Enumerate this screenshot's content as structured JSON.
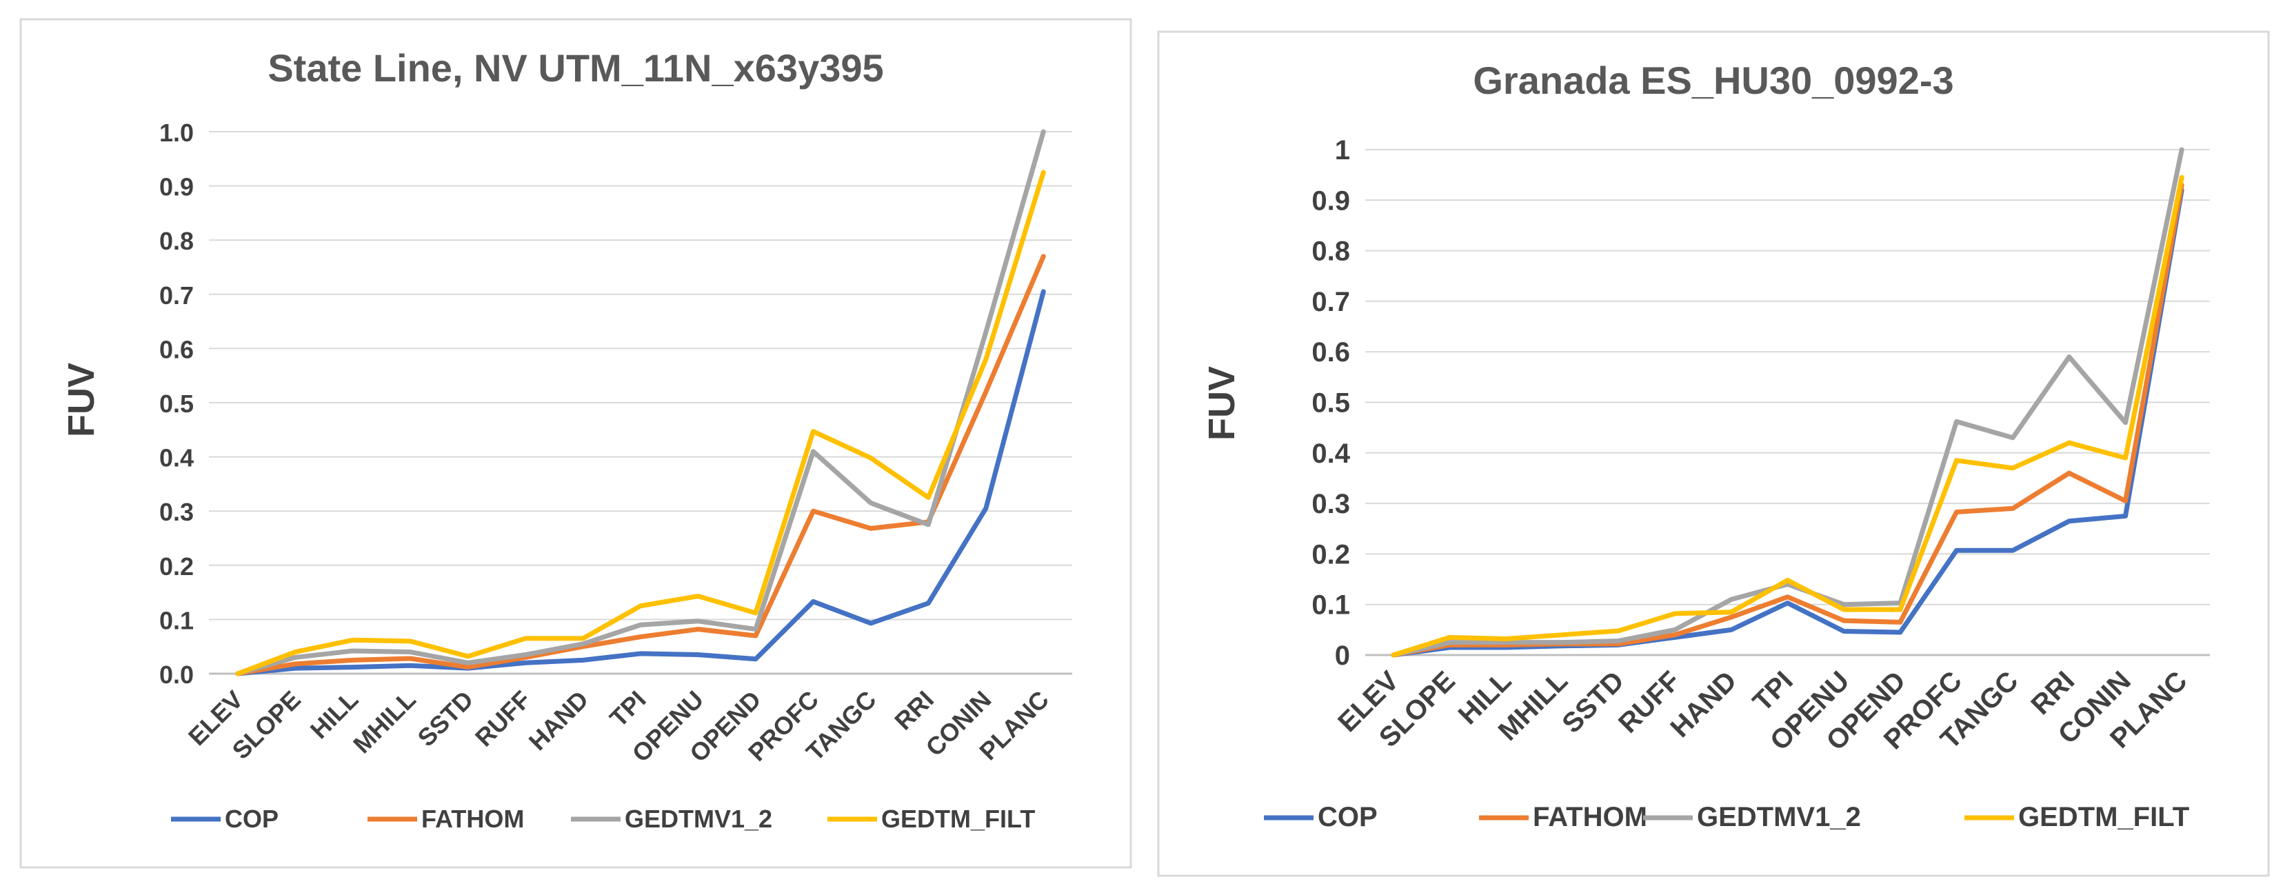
{
  "chart_data": [
    {
      "type": "line",
      "title": "State Line, NV  UTM_11N_x63y395",
      "xlabel": "",
      "ylabel": "FUV",
      "ylim": [
        0,
        1.0
      ],
      "yticks": [
        "0.0",
        "0.1",
        "0.2",
        "0.3",
        "0.4",
        "0.5",
        "0.6",
        "0.7",
        "0.8",
        "0.9",
        "1.0"
      ],
      "grid": true,
      "legend": "bottom",
      "categories": [
        "ELEV",
        "SLOPE",
        "HILL",
        "MHILL",
        "SSTD",
        "RUFF",
        "HAND",
        "TPI",
        "OPENU",
        "OPEND",
        "PROFC",
        "TANGC",
        "RRI",
        "CONIN",
        "PLANC"
      ],
      "series": [
        {
          "name": "COP",
          "color": "#4472c4",
          "values": [
            0,
            0.01,
            0.012,
            0.015,
            0.01,
            0.02,
            0.025,
            0.037,
            0.035,
            0.027,
            0.133,
            0.093,
            0.13,
            0.305,
            0.705
          ]
        },
        {
          "name": "FATHOM",
          "color": "#ed7d31",
          "values": [
            0,
            0.018,
            0.025,
            0.028,
            0.012,
            0.03,
            0.05,
            0.068,
            0.082,
            0.07,
            0.3,
            0.268,
            0.28,
            0.52,
            0.77
          ]
        },
        {
          "name": "GEDTMV1_2",
          "color": "#a5a5a5",
          "values": [
            0,
            0.03,
            0.042,
            0.04,
            0.02,
            0.035,
            0.055,
            0.09,
            0.097,
            0.082,
            0.41,
            0.315,
            0.275,
            0.63,
            1.0
          ]
        },
        {
          "name": "GEDTM_FILT",
          "color": "#ffc000",
          "values": [
            0,
            0.04,
            0.062,
            0.06,
            0.032,
            0.065,
            0.065,
            0.125,
            0.143,
            0.112,
            0.447,
            0.398,
            0.325,
            0.58,
            0.925
          ]
        }
      ]
    },
    {
      "type": "line",
      "title": "Granada ES_HU30_0992-3",
      "xlabel": "",
      "ylabel": "FUV",
      "ylim": [
        0,
        1
      ],
      "yticks": [
        "0",
        "0.1",
        "0.2",
        "0.3",
        "0.4",
        "0.5",
        "0.6",
        "0.7",
        "0.8",
        "0.9",
        "1"
      ],
      "grid": true,
      "legend": "bottom",
      "categories": [
        "ELEV",
        "SLOPE",
        "HILL",
        "MHILL",
        "SSTD",
        "RUFF",
        "HAND",
        "TPI",
        "OPENU",
        "OPEND",
        "PROFC",
        "TANGC",
        "RRI",
        "CONIN",
        "PLANC"
      ],
      "series": [
        {
          "name": "COP",
          "color": "#4472c4",
          "values": [
            0,
            0.015,
            0.015,
            0.018,
            0.02,
            0.035,
            0.05,
            0.103,
            0.047,
            0.045,
            0.207,
            0.207,
            0.265,
            0.275,
            0.92
          ]
        },
        {
          "name": "FATHOM",
          "color": "#ed7d31",
          "values": [
            0,
            0.02,
            0.02,
            0.022,
            0.022,
            0.04,
            0.075,
            0.115,
            0.068,
            0.065,
            0.283,
            0.29,
            0.36,
            0.305,
            0.93
          ]
        },
        {
          "name": "GEDTMV1_2",
          "color": "#a5a5a5",
          "values": [
            0,
            0.025,
            0.025,
            0.025,
            0.028,
            0.05,
            0.11,
            0.14,
            0.1,
            0.103,
            0.462,
            0.43,
            0.59,
            0.46,
            1.0
          ]
        },
        {
          "name": "GEDTM_FILT",
          "color": "#ffc000",
          "values": [
            0,
            0.035,
            0.032,
            0.04,
            0.048,
            0.082,
            0.085,
            0.148,
            0.09,
            0.09,
            0.385,
            0.37,
            0.42,
            0.39,
            0.945
          ]
        }
      ]
    }
  ]
}
